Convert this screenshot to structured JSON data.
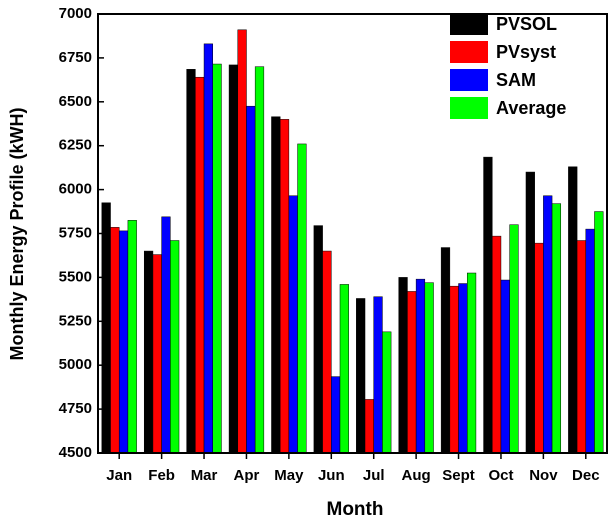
{
  "chart_data": {
    "type": "bar",
    "xlabel": "Month",
    "ylabel": "Monthly Energy Profile (kWH)",
    "categories": [
      "Jan",
      "Feb",
      "Mar",
      "Apr",
      "May",
      "Jun",
      "Jul",
      "Aug",
      "Sept",
      "Oct",
      "Nov",
      "Dec"
    ],
    "series": [
      {
        "name": "PVSOL",
        "color": "#000000",
        "values": [
          5925,
          5650,
          6685,
          6710,
          6415,
          5795,
          5380,
          5500,
          5670,
          6185,
          6100,
          6130
        ]
      },
      {
        "name": "PVsyst",
        "color": "#ff0000",
        "values": [
          5785,
          5630,
          6640,
          6910,
          6400,
          5650,
          4805,
          5420,
          5450,
          5735,
          5695,
          5710
        ]
      },
      {
        "name": "SAM",
        "color": "#0000ff",
        "values": [
          5765,
          5845,
          6830,
          6475,
          5965,
          4935,
          5390,
          5490,
          5465,
          5485,
          5965,
          5775
        ]
      },
      {
        "name": "Average",
        "color": "#00ff00",
        "values": [
          5825,
          5710,
          6715,
          6700,
          6260,
          5460,
          5190,
          5470,
          5525,
          5800,
          5920,
          5875
        ]
      }
    ],
    "ylim": [
      4500,
      7000
    ],
    "yticks": [
      4500,
      4750,
      5000,
      5250,
      5500,
      5750,
      6000,
      6250,
      6500,
      6750,
      7000
    ],
    "legend": "upper right"
  }
}
